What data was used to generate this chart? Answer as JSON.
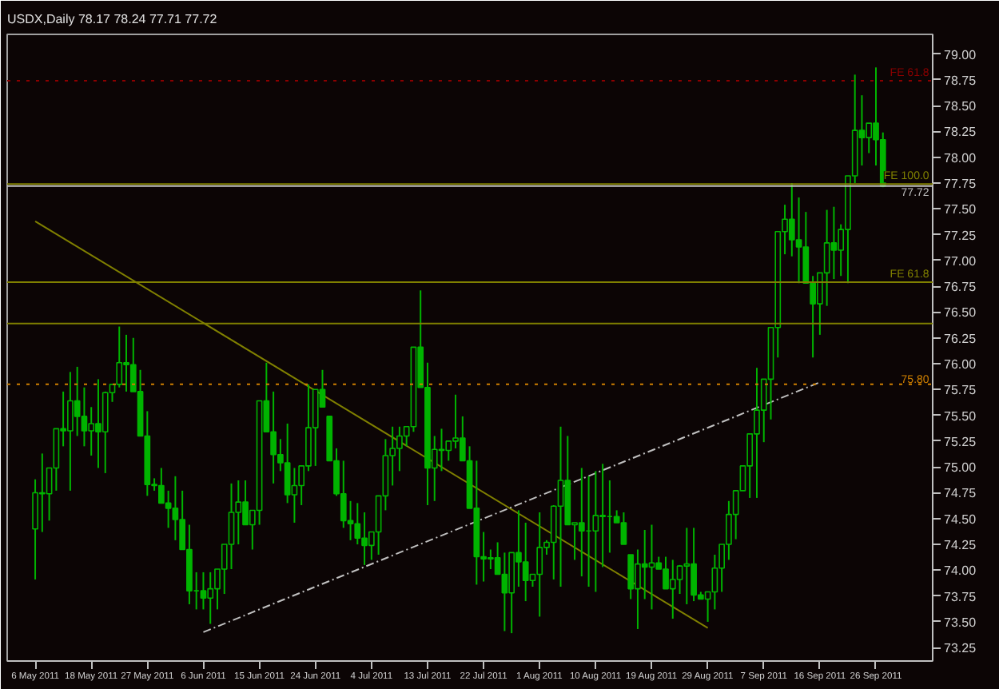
{
  "chart_data": {
    "type": "candlestick",
    "title": "USDX,Daily  78.17 78.24 77.71 77.72",
    "color": "#00b400",
    "categories": [
      "6 May 2011",
      null,
      null,
      null,
      null,
      null,
      null,
      null,
      "18 May 2011",
      null,
      null,
      null,
      null,
      null,
      null,
      null,
      "27 May 2011",
      null,
      null,
      null,
      null,
      null,
      null,
      null,
      "6 Jun 2011",
      null,
      null,
      null,
      null,
      null,
      null,
      null,
      "15 Jun 2011",
      null,
      null,
      null,
      null,
      null,
      null,
      null,
      "24 Jun 2011",
      null,
      null,
      null,
      null,
      null,
      null,
      null,
      "4 Jul 2011",
      null,
      null,
      null,
      null,
      null,
      null,
      null,
      "13 Jul 2011",
      null,
      null,
      null,
      null,
      null,
      null,
      null,
      "22 Jul 2011",
      null,
      null,
      null,
      null,
      null,
      null,
      null,
      "1 Aug 2011",
      null,
      null,
      null,
      null,
      null,
      null,
      null,
      "10 Aug 2011",
      null,
      null,
      null,
      null,
      null,
      null,
      null,
      "19 Aug 2011",
      null,
      null,
      null,
      null,
      null,
      null,
      null,
      "29 Aug 2011",
      null,
      null,
      null,
      null,
      null,
      null,
      null,
      "7 Sep 2011",
      null,
      null,
      null,
      null,
      null,
      null,
      null,
      "16 Sep 2011",
      null,
      null,
      null,
      null,
      null,
      null,
      null,
      "26 Sep 2011",
      null
    ],
    "ohlc": [
      [
        74.4,
        74.88,
        73.91,
        74.75
      ],
      [
        74.75,
        75.13,
        74.37,
        74.74
      ],
      [
        74.74,
        74.99,
        74.48,
        74.99
      ],
      [
        74.99,
        75.37,
        74.77,
        75.37
      ],
      [
        75.37,
        75.73,
        75.2,
        75.35
      ],
      [
        75.35,
        75.92,
        74.77,
        75.64
      ],
      [
        75.64,
        75.97,
        75.3,
        75.49
      ],
      [
        75.49,
        75.77,
        75.2,
        75.35
      ],
      [
        75.35,
        75.58,
        75.11,
        75.42
      ],
      [
        75.42,
        75.85,
        74.99,
        75.34
      ],
      [
        75.34,
        75.73,
        74.94,
        75.72
      ],
      [
        75.72,
        75.8,
        75.63,
        75.8
      ],
      [
        75.8,
        76.36,
        75.77,
        76.01
      ],
      [
        76.01,
        76.28,
        75.73,
        75.99
      ],
      [
        75.99,
        76.25,
        75.73,
        75.73
      ],
      [
        75.73,
        75.94,
        75.3,
        75.3
      ],
      [
        75.3,
        75.54,
        74.72,
        74.83
      ],
      [
        74.83,
        74.89,
        74.77,
        74.82
      ],
      [
        74.82,
        74.99,
        74.65,
        74.65
      ],
      [
        74.65,
        74.77,
        74.41,
        74.6
      ],
      [
        74.6,
        74.91,
        74.29,
        74.49
      ],
      [
        74.49,
        74.77,
        74.2,
        74.2
      ],
      [
        74.2,
        74.44,
        73.67,
        73.8
      ],
      [
        73.8,
        73.98,
        73.62,
        73.8
      ],
      [
        73.8,
        73.98,
        73.62,
        73.73
      ],
      [
        73.73,
        73.98,
        73.48,
        73.82
      ],
      [
        73.82,
        74.01,
        73.62,
        74.01
      ],
      [
        74.01,
        74.25,
        73.77,
        74.25
      ],
      [
        74.25,
        74.84,
        74.01,
        74.56
      ],
      [
        74.56,
        74.87,
        74.25,
        74.66
      ],
      [
        74.66,
        74.87,
        74.44,
        74.44
      ],
      [
        74.44,
        74.58,
        74.2,
        74.58
      ],
      [
        74.58,
        75.64,
        74.44,
        75.64
      ],
      [
        75.64,
        76.01,
        75.34,
        75.34
      ],
      [
        75.34,
        75.73,
        74.84,
        75.12
      ],
      [
        75.12,
        75.27,
        74.96,
        75.04
      ],
      [
        75.04,
        75.42,
        74.65,
        74.73
      ],
      [
        74.73,
        74.99,
        74.46,
        74.82
      ],
      [
        74.82,
        75.01,
        74.63,
        75.01
      ],
      [
        75.01,
        75.8,
        74.96,
        75.38
      ],
      [
        75.38,
        75.75,
        75.01,
        75.75
      ],
      [
        75.75,
        75.94,
        75.58,
        75.58
      ],
      [
        75.49,
        75.49,
        75.06,
        75.06
      ],
      [
        75.06,
        75.18,
        74.72,
        74.74
      ],
      [
        74.74,
        75.06,
        74.41,
        74.48
      ],
      [
        74.48,
        74.67,
        74.29,
        74.45
      ],
      [
        74.45,
        74.65,
        74.25,
        74.31
      ],
      [
        74.31,
        74.56,
        74.05,
        74.24
      ],
      [
        74.24,
        74.37,
        74.1,
        74.37
      ],
      [
        74.37,
        74.72,
        74.15,
        74.72
      ],
      [
        74.72,
        75.27,
        74.58,
        75.11
      ],
      [
        75.11,
        75.39,
        74.82,
        75.18
      ],
      [
        75.18,
        75.39,
        74.96,
        75.3
      ],
      [
        75.3,
        75.39,
        75.2,
        75.39
      ],
      [
        75.39,
        76.16,
        75.34,
        76.16
      ],
      [
        76.16,
        76.71,
        75.77,
        75.77
      ],
      [
        75.77,
        76.01,
        74.63,
        74.99
      ],
      [
        74.99,
        75.3,
        74.67,
        75.17
      ],
      [
        75.17,
        75.37,
        74.96,
        75.16
      ],
      [
        75.16,
        75.25,
        75.06,
        75.25
      ],
      [
        75.25,
        75.7,
        75.18,
        75.28
      ],
      [
        75.28,
        75.49,
        75.06,
        75.06
      ],
      [
        75.06,
        75.2,
        74.6,
        74.6
      ],
      [
        74.6,
        75.06,
        73.86,
        74.13
      ],
      [
        74.13,
        74.37,
        73.89,
        74.11
      ],
      [
        74.11,
        74.2,
        74.01,
        74.12
      ],
      [
        74.12,
        74.27,
        73.96,
        73.96
      ],
      [
        73.96,
        74.17,
        73.41,
        73.78
      ],
      [
        73.78,
        74.17,
        73.39,
        74.17
      ],
      [
        74.17,
        74.58,
        73.84,
        74.08
      ],
      [
        74.08,
        74.46,
        73.7,
        73.9
      ],
      [
        73.9,
        73.96,
        73.84,
        73.96
      ],
      [
        73.96,
        74.56,
        73.55,
        74.22
      ],
      [
        74.22,
        74.29,
        74.15,
        74.27
      ],
      [
        74.27,
        74.63,
        73.91,
        74.62
      ],
      [
        74.62,
        75.39,
        73.84,
        74.87
      ],
      [
        74.87,
        75.3,
        74.44,
        74.44
      ],
      [
        74.44,
        74.46,
        74.1,
        74.46
      ],
      [
        74.46,
        74.99,
        73.94,
        74.38
      ],
      [
        74.38,
        74.91,
        73.84,
        74.38
      ],
      [
        74.38,
        74.96,
        73.79,
        74.53
      ],
      [
        74.53,
        75.03,
        74.03,
        74.52
      ],
      [
        74.52,
        74.87,
        74.17,
        74.52
      ],
      [
        74.52,
        74.58,
        74.46,
        74.46
      ],
      [
        74.46,
        74.56,
        74.25,
        74.25
      ],
      [
        74.15,
        74.15,
        73.72,
        73.82
      ],
      [
        73.82,
        74.2,
        73.43,
        74.06
      ],
      [
        74.06,
        74.39,
        73.72,
        74.03
      ],
      [
        74.03,
        74.44,
        73.62,
        74.07
      ],
      [
        74.07,
        74.13,
        74.01,
        74.01
      ],
      [
        74.01,
        74.13,
        73.82,
        73.82
      ],
      [
        73.82,
        74.1,
        73.53,
        73.91
      ],
      [
        73.91,
        74.05,
        73.77,
        74.04
      ],
      [
        74.04,
        74.41,
        73.67,
        74.06
      ],
      [
        74.06,
        74.41,
        73.7,
        73.76
      ],
      [
        73.76,
        73.79,
        73.72,
        73.72
      ],
      [
        73.72,
        73.79,
        73.5,
        73.79
      ],
      [
        73.79,
        74.15,
        73.62,
        74.02
      ],
      [
        74.02,
        74.25,
        73.79,
        74.25
      ],
      [
        74.25,
        74.67,
        74.1,
        74.54
      ],
      [
        74.54,
        74.77,
        74.3,
        74.77
      ],
      [
        74.77,
        75.01,
        74.77,
        75.01
      ],
      [
        75.01,
        75.32,
        74.7,
        75.32
      ],
      [
        75.32,
        75.96,
        74.7,
        75.55
      ],
      [
        75.55,
        75.85,
        75.24,
        75.85
      ],
      [
        75.85,
        76.35,
        75.46,
        76.35
      ],
      [
        76.35,
        77.28,
        76.06,
        77.28
      ],
      [
        77.28,
        77.54,
        77.06,
        77.4
      ],
      [
        77.4,
        77.75,
        77.04,
        77.2
      ],
      [
        77.2,
        77.61,
        76.78,
        77.13
      ],
      [
        77.13,
        77.47,
        76.78,
        76.78
      ],
      [
        76.78,
        76.85,
        76.06,
        76.58
      ],
      [
        76.58,
        76.88,
        76.28,
        76.88
      ],
      [
        76.88,
        77.49,
        76.56,
        77.17
      ],
      [
        77.17,
        77.52,
        76.82,
        77.1
      ],
      [
        77.1,
        77.35,
        76.85,
        77.3
      ],
      [
        77.3,
        77.82,
        76.78,
        77.82
      ],
      [
        77.82,
        78.8,
        77.75,
        78.26
      ],
      [
        78.26,
        78.6,
        77.92,
        78.19
      ],
      [
        78.19,
        78.33,
        78.04,
        78.33
      ],
      [
        78.33,
        78.87,
        77.92,
        78.17
      ],
      [
        78.17,
        78.24,
        77.71,
        77.72
      ]
    ],
    "series": [
      {
        "type": "line",
        "x": [
          "6 May 2011",
          "29 Aug 2011"
        ],
        "values": [
          77.38,
          73.44
        ],
        "color": "#808000"
      },
      {
        "type": "line",
        "x": [
          "6 Jun 2011",
          "16 Sep 2011"
        ],
        "values": [
          73.4,
          75.82
        ],
        "color": "#c0c0c0",
        "line_style": "dashed"
      }
    ],
    "ref_lines": [
      {
        "axis": "y",
        "value": 78.74,
        "label": "FE 61.8",
        "color": "#8b0000",
        "line_style": "dotted"
      },
      {
        "axis": "y",
        "value": 77.74,
        "label": "FE 100.0",
        "color": "#808000"
      },
      {
        "axis": "y",
        "value": 77.72,
        "label": "77.72",
        "color": "#c0c0c0"
      },
      {
        "axis": "y",
        "value": 76.79,
        "label": "FE 61.8",
        "color": "#808000"
      },
      {
        "axis": "y",
        "value": 76.39,
        "color": "#808000"
      },
      {
        "axis": "y",
        "value": 75.8,
        "label": "75.80",
        "color": "#d08000",
        "line_style": "dotted"
      }
    ],
    "ylim": [
      73.12,
      79.19
    ],
    "yticks": [
      {
        "value": 73.25,
        "label": "73.25"
      },
      {
        "value": 73.5,
        "label": "73.50"
      },
      {
        "value": 73.75,
        "label": "73.75"
      },
      {
        "value": 74,
        "label": "74.00"
      },
      {
        "value": 74.25,
        "label": "74.25"
      },
      {
        "value": 74.5,
        "label": "74.50"
      },
      {
        "value": 74.75,
        "label": "74.75"
      },
      {
        "value": 75,
        "label": "75.00"
      },
      {
        "value": 75.25,
        "label": "75.25"
      },
      {
        "value": 75.5,
        "label": "75.50"
      },
      {
        "value": 75.75,
        "label": "75.75"
      },
      {
        "value": 76,
        "label": "76.00"
      },
      {
        "value": 76.25,
        "label": "76.25"
      },
      {
        "value": 76.5,
        "label": "76.50"
      },
      {
        "value": 76.75,
        "label": "76.75"
      },
      {
        "value": 77,
        "label": "77.00"
      },
      {
        "value": 77.25,
        "label": "77.25"
      },
      {
        "value": 77.5,
        "label": "77.50"
      },
      {
        "value": 77.75,
        "label": "77.75"
      },
      {
        "value": 78,
        "label": "78.00"
      },
      {
        "value": 78.25,
        "label": "78.25"
      },
      {
        "value": 78.5,
        "label": "78.50"
      },
      {
        "value": 78.75,
        "label": "78.75"
      },
      {
        "value": 79,
        "label": "79.00"
      }
    ]
  }
}
